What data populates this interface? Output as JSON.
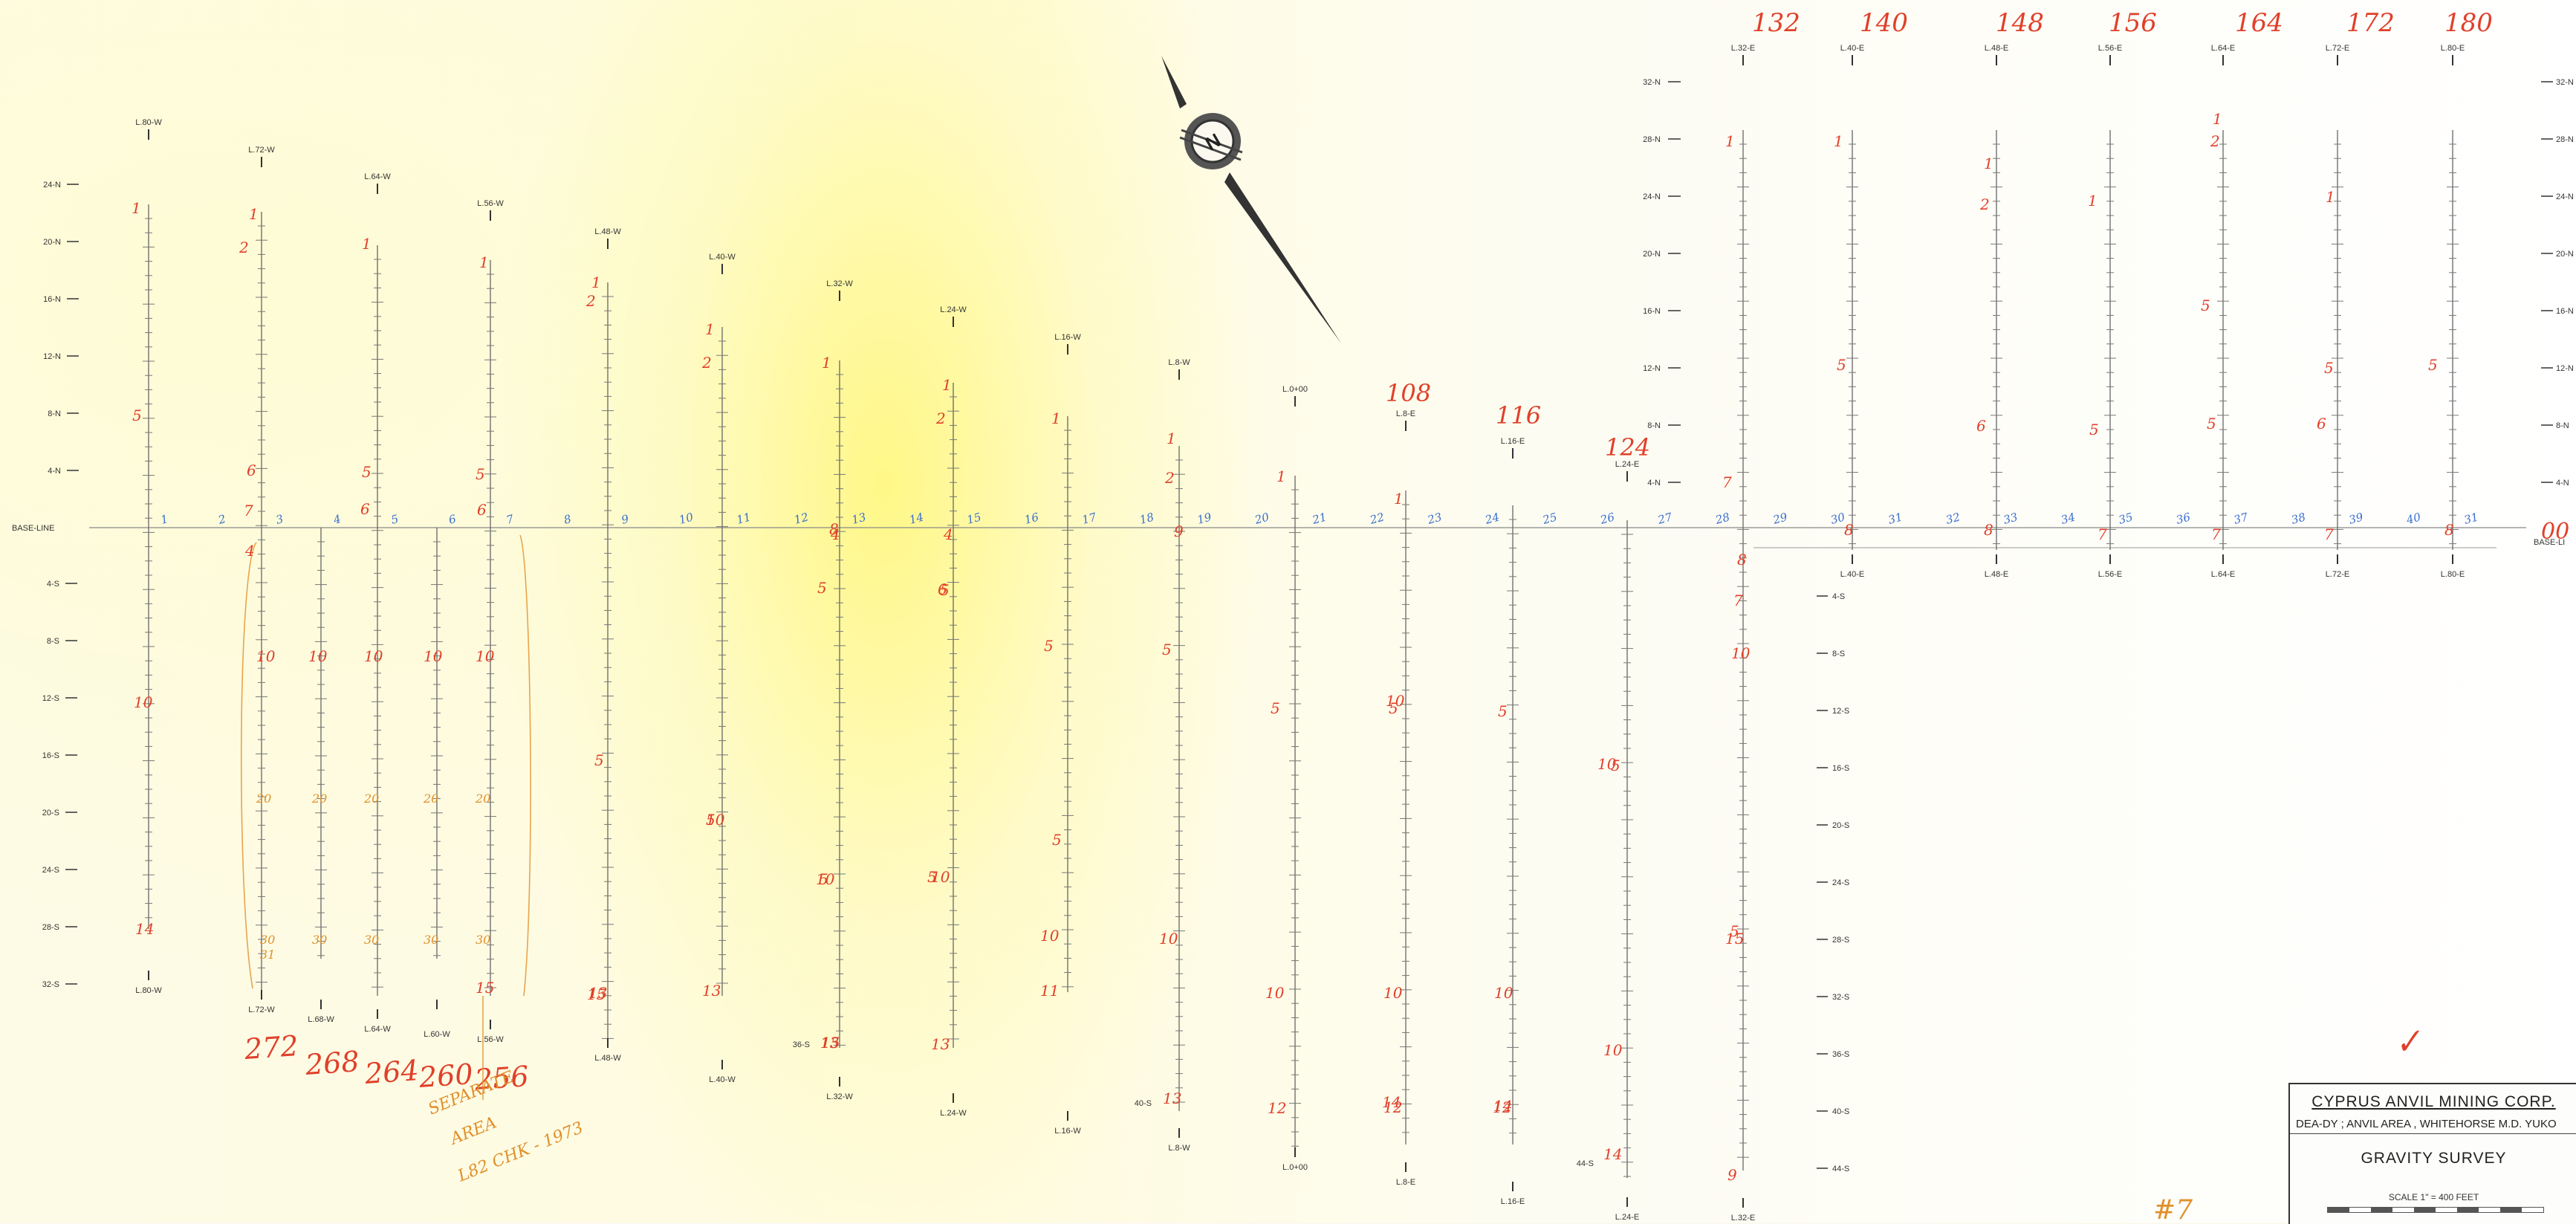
{
  "title_block": {
    "company": "CYPRUS ANVIL MINING CORP.",
    "area": "DEA-DY ; ANVIL AREA , WHITEHORSE M.D. YUKO",
    "survey": "GRAVITY SURVEY",
    "scale": "SCALE  1\" = 400  FEET"
  },
  "baseline_label": "BASE-LINE",
  "north_label": "N",
  "lines": [
    {
      "name": "L.80-W",
      "top": "L.80-W",
      "bottom": "L.80-W"
    },
    {
      "name": "L.72-W",
      "top": "L.72-W",
      "bottom": "L.72-W"
    },
    {
      "name": "L.64-W",
      "top": "L.64-W",
      "bottom": "L.64-W"
    },
    {
      "name": "L.56-W",
      "top": "L.56-W",
      "bottom": "L.56-W"
    },
    {
      "name": "L.48-W",
      "top": "L.48-W",
      "bottom": "L.48-W"
    },
    {
      "name": "L.40-W",
      "top": "L.40-W",
      "bottom": "L.40-W"
    },
    {
      "name": "L.32-W",
      "top": "L.32-W",
      "bottom": "L.32-W"
    },
    {
      "name": "L.24-W",
      "top": "L.24-W",
      "bottom": "L.24-W"
    },
    {
      "name": "L.16-W",
      "top": "L.16-W",
      "bottom": "L.16-W"
    },
    {
      "name": "L.8-W",
      "top": "L.8-W",
      "bottom": "L.8-W"
    },
    {
      "name": "L.0+00",
      "top": "L.0+00",
      "bottom": "L.0+00"
    },
    {
      "name": "L.8-E",
      "top": "L.8-E",
      "bottom": "L.8-E"
    },
    {
      "name": "L.16-E",
      "top": "L.16-E",
      "bottom": "L.16-E"
    },
    {
      "name": "L.24-E",
      "top": "L.24-E",
      "bottom": "L.24-E"
    },
    {
      "name": "L.32-E",
      "top": "L.32-E",
      "bottom": "L.32-E"
    },
    {
      "name": "L.40-E",
      "top": "L.40-E",
      "bottom": "L.40-E"
    },
    {
      "name": "L.48-E",
      "top": "L.48-E",
      "bottom": "L.48-E"
    },
    {
      "name": "L.56-E",
      "top": "L.56-E",
      "bottom": "L.56-E"
    },
    {
      "name": "L.64-E",
      "top": "L.64-E",
      "bottom": "L.64-E"
    },
    {
      "name": "L.72-E",
      "top": "L.72-E",
      "bottom": "L.72-E"
    },
    {
      "name": "L.80-E",
      "top": "L.80-E",
      "bottom": "L.80-E"
    }
  ],
  "sub_lines": [
    {
      "name": "L.68-W"
    },
    {
      "name": "L.60-W"
    }
  ],
  "left_north_labels": [
    "24-N",
    "20-N",
    "16-N",
    "12-N",
    "8-N",
    "4-N"
  ],
  "left_south_labels": [
    "4-S",
    "8-S",
    "12-S",
    "16-S",
    "20-S",
    "24-S",
    "28-S",
    "32-S"
  ],
  "east_north_labels": [
    "32-N",
    "28-N",
    "24-N",
    "20-N",
    "16-N",
    "12-N",
    "8-N",
    "4-N"
  ],
  "right_north_labels": [
    "32-N",
    "28-N",
    "24-N",
    "20-N",
    "16-N",
    "12-N",
    "8-N",
    "4-N"
  ],
  "right_baseline_label": "BASE-LI",
  "east_south_labels": [
    "4-S",
    "8-S",
    "12-S",
    "16-S",
    "20-S",
    "24-S",
    "28-S",
    "32-S",
    "36-S",
    "40-S",
    "44-S"
  ],
  "misc_station_labels": [
    "36-S",
    "40-S",
    "44-S"
  ],
  "handwritten_top": [
    "132",
    "140",
    "148",
    "156",
    "164",
    "172",
    "180"
  ],
  "handwritten_mid": [
    "108",
    "116",
    "124"
  ],
  "handwritten_bottom": [
    "272",
    "268",
    "264",
    "260",
    "256"
  ],
  "handwritten_right_edge": "00",
  "handwritten_corner": "#7",
  "handwritten_note": [
    "SEPARATE",
    "AREA",
    "L82 CHK - 1973"
  ],
  "red_station_numbers": {
    "ones": [
      "1",
      "1",
      "1",
      "1",
      "1",
      "1",
      "1",
      "1",
      "1",
      "1",
      "1",
      "1",
      "1",
      "1",
      "1",
      "1",
      "1",
      "1"
    ],
    "twos": [
      "2",
      "2",
      "2",
      "2",
      "2",
      "2",
      "2"
    ],
    "fives": [
      "5",
      "5",
      "5",
      "5",
      "5",
      "5",
      "5",
      "5",
      "5",
      "5",
      "5",
      "5",
      "5",
      "5",
      "5",
      "5",
      "5",
      "5",
      "5",
      "5",
      "5",
      "5",
      "5"
    ],
    "sixes": [
      "6",
      "6",
      "6",
      "6",
      "6",
      "6"
    ],
    "sevens": [
      "7",
      "7",
      "7",
      "7",
      "7",
      "7"
    ],
    "eights": [
      "8",
      "8",
      "8",
      "8",
      "8"
    ],
    "fours": [
      "4",
      "4",
      "4"
    ],
    "nines": [
      "9",
      "9"
    ],
    "tens": [
      "10",
      "10",
      "10",
      "10",
      "10",
      "10",
      "10",
      "10",
      "10",
      "10",
      "10",
      "10",
      "10",
      "10",
      "10",
      "10",
      "10",
      "10"
    ],
    "elevens": [
      "11"
    ],
    "twelves": [
      "12",
      "12",
      "12"
    ],
    "thirteens": [
      "13",
      "13",
      "13",
      "13",
      "13"
    ],
    "fourteens": [
      "14",
      "14",
      "14",
      "14"
    ],
    "fifteens": [
      "15",
      "15",
      "15",
      "15"
    ],
    "twenties": [
      "20",
      "20",
      "20",
      "20",
      "20"
    ],
    "thirties": [
      "30",
      "31",
      "30",
      "30",
      "30",
      "30"
    ]
  },
  "blue_baseline_numbers": [
    "1",
    "2",
    "3",
    "4",
    "5",
    "6",
    "7",
    "8",
    "9",
    "10",
    "11",
    "12",
    "13",
    "14",
    "15",
    "16",
    "17",
    "18",
    "19",
    "20",
    "21",
    "22",
    "23",
    "24",
    "25",
    "26",
    "27",
    "28",
    "29",
    "30",
    "31",
    "32",
    "33",
    "34",
    "35",
    "36",
    "37",
    "38",
    "39",
    "40",
    "31"
  ],
  "check_mark": "✓",
  "colors": {
    "paper": "#fbf9ef",
    "ink": "#444444",
    "red_pencil": "#e0402a",
    "orange_pencil": "#e0902a",
    "blue_pencil": "#3a6fd0",
    "yellow_wash": "#fff27a"
  }
}
